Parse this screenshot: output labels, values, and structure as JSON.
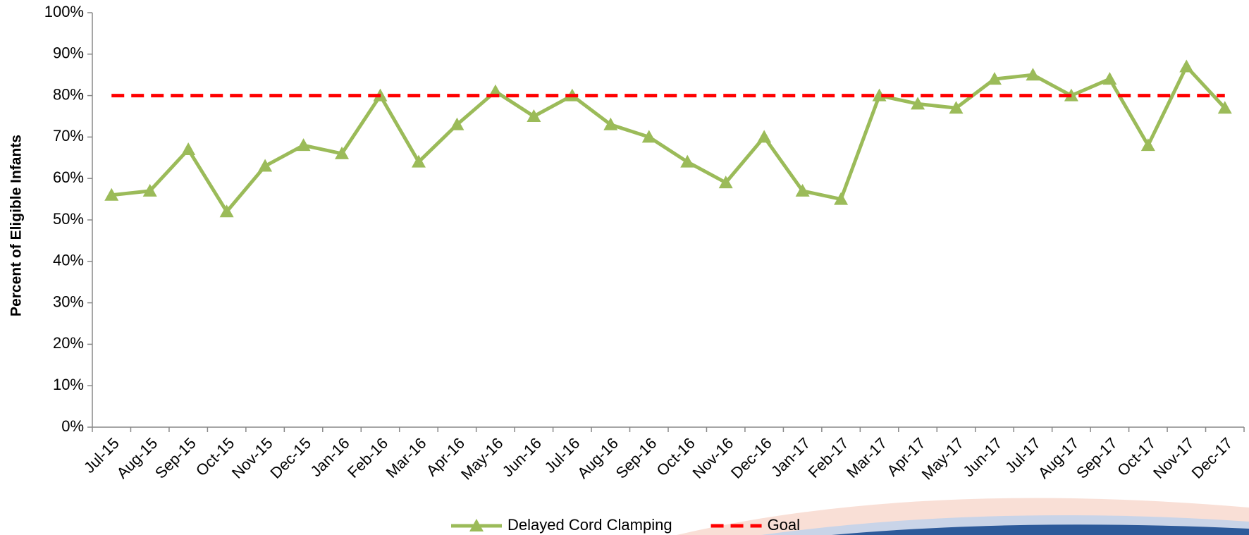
{
  "chart_data": {
    "type": "line",
    "y_label": "Percent of Eligible Infants",
    "categories": [
      "Jul-15",
      "Aug-15",
      "Sep-15",
      "Oct-15",
      "Nov-15",
      "Dec-15",
      "Jan-16",
      "Feb-16",
      "Mar-16",
      "Apr-16",
      "May-16",
      "Jun-16",
      "Jul-16",
      "Aug-16",
      "Sep-16",
      "Oct-16",
      "Nov-16",
      "Dec-16",
      "Jan-17",
      "Feb-17",
      "Mar-17",
      "Apr-17",
      "May-17",
      "Jun-17",
      "Jul-17",
      "Aug-17",
      "Sep-17",
      "Oct-17",
      "Nov-17",
      "Dec-17"
    ],
    "series": [
      {
        "name": "Delayed Cord Clamping",
        "color": "#9bbb59",
        "marker": "triangle",
        "values": [
          56,
          57,
          67,
          52,
          63,
          68,
          66,
          80,
          64,
          73,
          81,
          75,
          80,
          73,
          70,
          64,
          59,
          70,
          57,
          55,
          80,
          78,
          77,
          84,
          85,
          80,
          84,
          68,
          87,
          77
        ]
      },
      {
        "name": "Goal",
        "color": "#ff0000",
        "dashed": true,
        "values": [
          80,
          80,
          80,
          80,
          80,
          80,
          80,
          80,
          80,
          80,
          80,
          80,
          80,
          80,
          80,
          80,
          80,
          80,
          80,
          80,
          80,
          80,
          80,
          80,
          80,
          80,
          80,
          80,
          80,
          80
        ]
      }
    ],
    "ylim": [
      0,
      100
    ],
    "yticks": [
      {
        "value": 0,
        "label": "0%"
      },
      {
        "value": 10,
        "label": "10%"
      },
      {
        "value": 20,
        "label": "20%"
      },
      {
        "value": 30,
        "label": "30%"
      },
      {
        "value": 40,
        "label": "40%"
      },
      {
        "value": 50,
        "label": "50%"
      },
      {
        "value": 60,
        "label": "60%"
      },
      {
        "value": 70,
        "label": "70%"
      },
      {
        "value": 80,
        "label": "80%"
      },
      {
        "value": 90,
        "label": "90%"
      },
      {
        "value": 100,
        "label": "100%"
      }
    ],
    "grid": false,
    "legend": "bottom"
  }
}
